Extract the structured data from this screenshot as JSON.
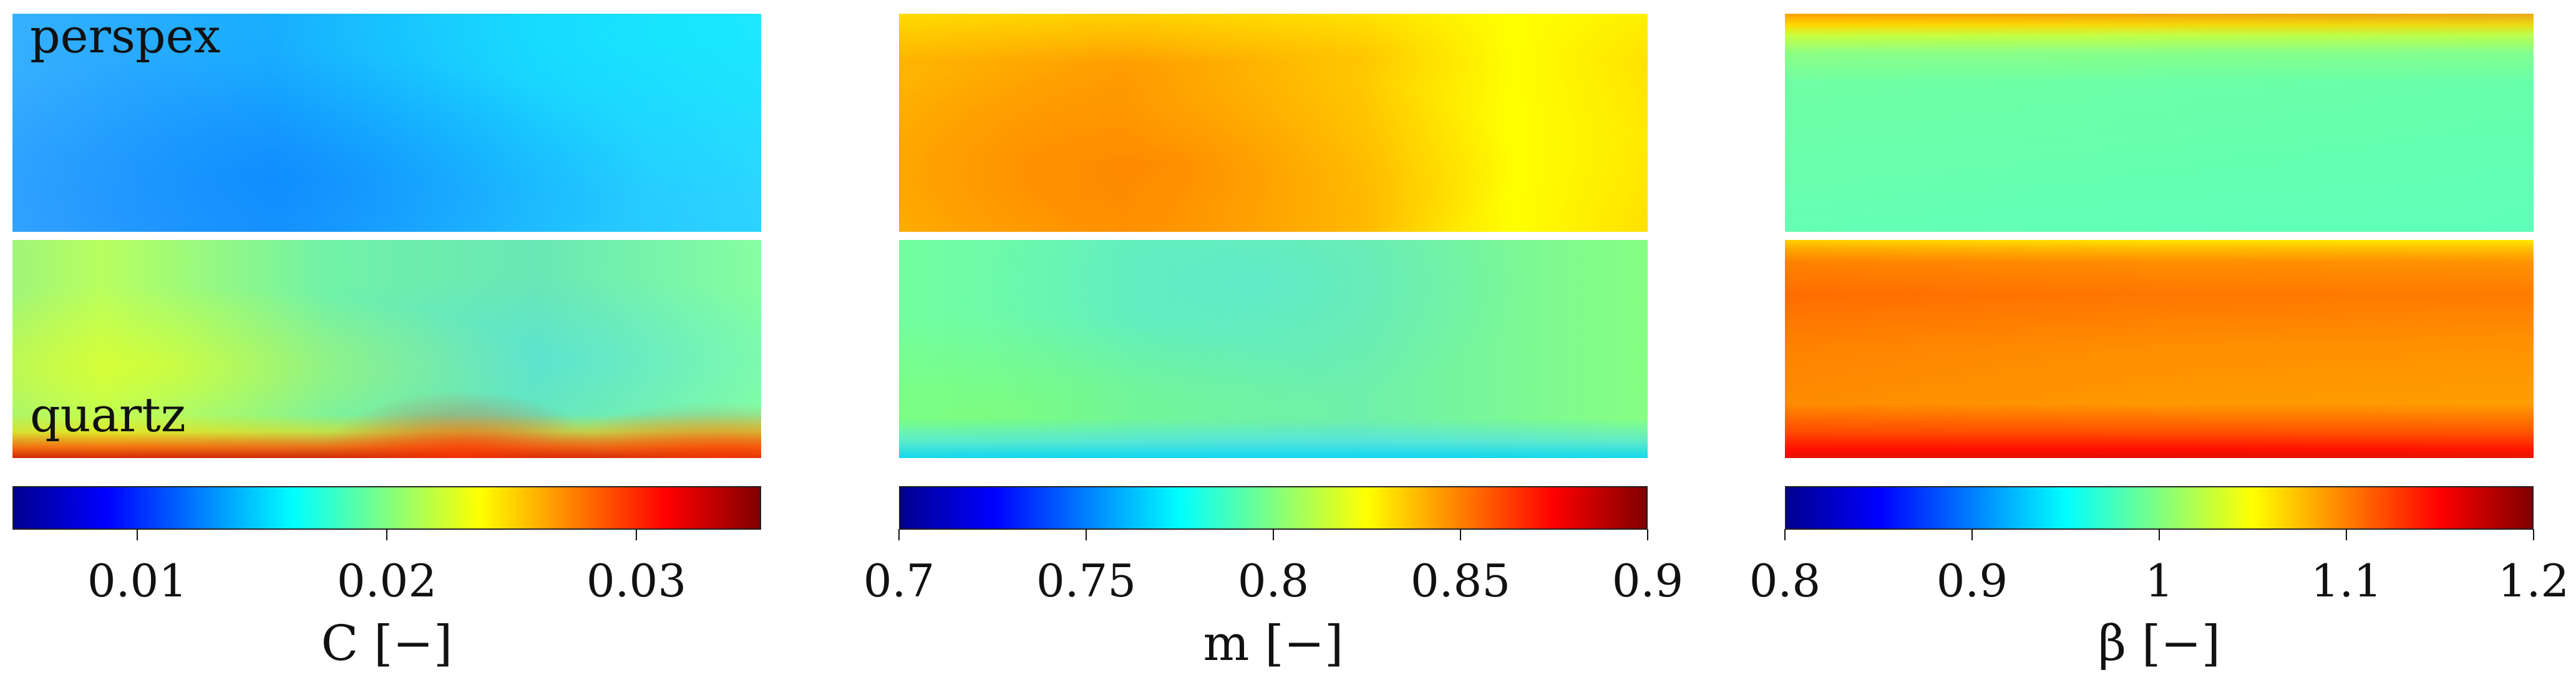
{
  "chart_data": [
    {
      "type": "heatmap",
      "colormap": "jet",
      "top_panel_label": "perspex",
      "bottom_panel_label": "quartz",
      "colorbar": {
        "range": [
          0.005,
          0.035
        ],
        "ticks": [
          0.01,
          0.02,
          0.03
        ],
        "tick_labels": [
          "0.01",
          "0.02",
          "0.03"
        ],
        "xlabel": "C [−]"
      }
    },
    {
      "type": "heatmap",
      "colormap": "jet",
      "top_panel_label": "",
      "bottom_panel_label": "",
      "colorbar": {
        "range": [
          0.7,
          0.9
        ],
        "ticks": [
          0.7,
          0.75,
          0.8,
          0.85,
          0.9
        ],
        "tick_labels": [
          "0.7",
          "0.75",
          "0.8",
          "0.85",
          "0.9"
        ],
        "xlabel": "m [−]"
      }
    },
    {
      "type": "heatmap",
      "colormap": "jet",
      "top_panel_label": "",
      "bottom_panel_label": "",
      "colorbar": {
        "range": [
          0.8,
          1.2
        ],
        "ticks": [
          0.8,
          0.9,
          1.0,
          1.1,
          1.2
        ],
        "tick_labels": [
          "0.8",
          "0.9",
          "1",
          "1.1",
          "1.2"
        ],
        "xlabel": "β [−]"
      }
    }
  ]
}
